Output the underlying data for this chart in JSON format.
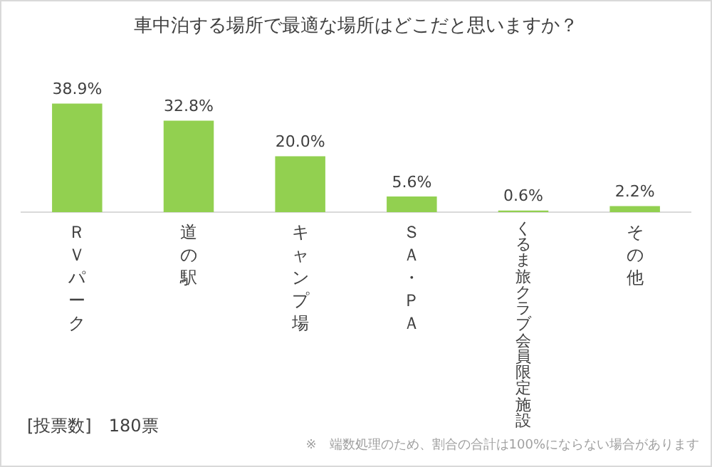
{
  "chart_data": {
    "type": "bar",
    "title": "車中泊する場所で最適な場所はどこだと思いますか？",
    "categories": [
      "ＲＶパーク",
      "道の駅",
      "キャンプ場",
      "ＳＡ・ＰＡ",
      "くるま旅クラブ会員限定施設",
      "その他"
    ],
    "values": [
      38.9,
      32.8,
      20.0,
      5.6,
      0.6,
      2.2
    ],
    "value_labels": [
      "38.9%",
      "32.8%",
      "20.0%",
      "5.6%",
      "0.6%",
      "2.2%"
    ],
    "color": "#92d050",
    "grid": false,
    "legend": false,
    "annotations": [
      "[投票数]　180票",
      "※　端数処理のため、割合の合計は100%にならない場合があります"
    ]
  }
}
